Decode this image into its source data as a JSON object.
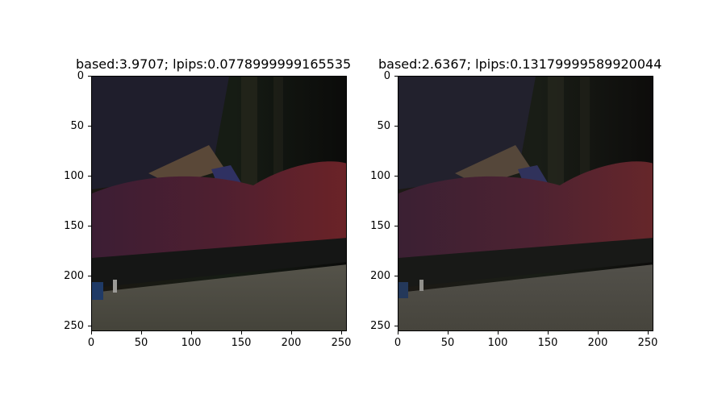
{
  "panels": [
    {
      "title": "based:3.9707; lpips:0.0778999999165535"
    },
    {
      "title": "based:2.6367; lpips:0.13179999589920044"
    }
  ],
  "axis": {
    "yticks": [
      "0",
      "50",
      "100",
      "150",
      "200",
      "250"
    ],
    "xticks": [
      "0",
      "50",
      "100",
      "150",
      "200",
      "250"
    ]
  },
  "colors": {
    "background_dark": "#14120f",
    "garment": "#1f1d2a",
    "arm": "#5b4a3a",
    "sleeve_blue": "#2e2f5c",
    "red_object": "#5a2430",
    "red_object_right": "#6a2428",
    "surface": "#4c4a40"
  }
}
